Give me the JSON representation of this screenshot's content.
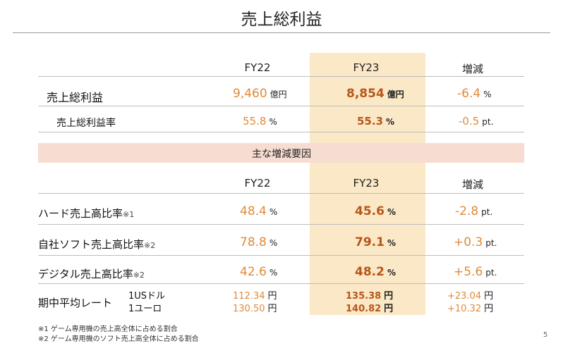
{
  "title": "売上総利益",
  "columns": {
    "fy22": "FY22",
    "fy23": "FY23",
    "change": "増減"
  },
  "top_rows": [
    {
      "label": "売上総利益",
      "fy22": "9,460",
      "fy22_unit": "億円",
      "fy23": "8,854",
      "fy23_unit": "億円",
      "change": "-6.4",
      "change_unit": "%"
    },
    {
      "label": "売上総利益率",
      "fy22": "55.8",
      "fy22_unit": "%",
      "fy23": "55.3",
      "fy23_unit": "%",
      "change": "-0.5",
      "change_unit": "pt."
    }
  ],
  "band_title": "主な増減要因",
  "factor_rows": [
    {
      "label": "ハード売上高比率",
      "note": "※1",
      "fy22": "48.4",
      "fy22_unit": "%",
      "fy23": "45.6",
      "fy23_unit": "%",
      "change": "-2.8",
      "change_unit": "pt."
    },
    {
      "label": "自社ソフト売上高比率",
      "note": "※2",
      "fy22": "78.8",
      "fy22_unit": "%",
      "fy23": "79.1",
      "fy23_unit": "%",
      "change": "+0.3",
      "change_unit": "pt."
    },
    {
      "label": "デジタル売上高比率",
      "note": "※2",
      "fy22": "42.6",
      "fy22_unit": "%",
      "fy23": "48.2",
      "fy23_unit": "%",
      "change": "+5.6",
      "change_unit": "pt."
    }
  ],
  "rate": {
    "label": "期中平均レート",
    "rows": [
      {
        "currency": "1USドル",
        "fy22": "112.34",
        "fy23": "135.38",
        "change": "+23.04",
        "unit": "円"
      },
      {
        "currency": "1ユーロ",
        "fy22": "130.50",
        "fy23": "140.82",
        "change": "+10.32",
        "unit": "円"
      }
    ]
  },
  "footnotes": [
    "※1 ゲーム専用機の売上高全体に占める割合",
    "※2 ゲーム専用機のソフト売上高全体に占める割合"
  ],
  "page_number": "5"
}
